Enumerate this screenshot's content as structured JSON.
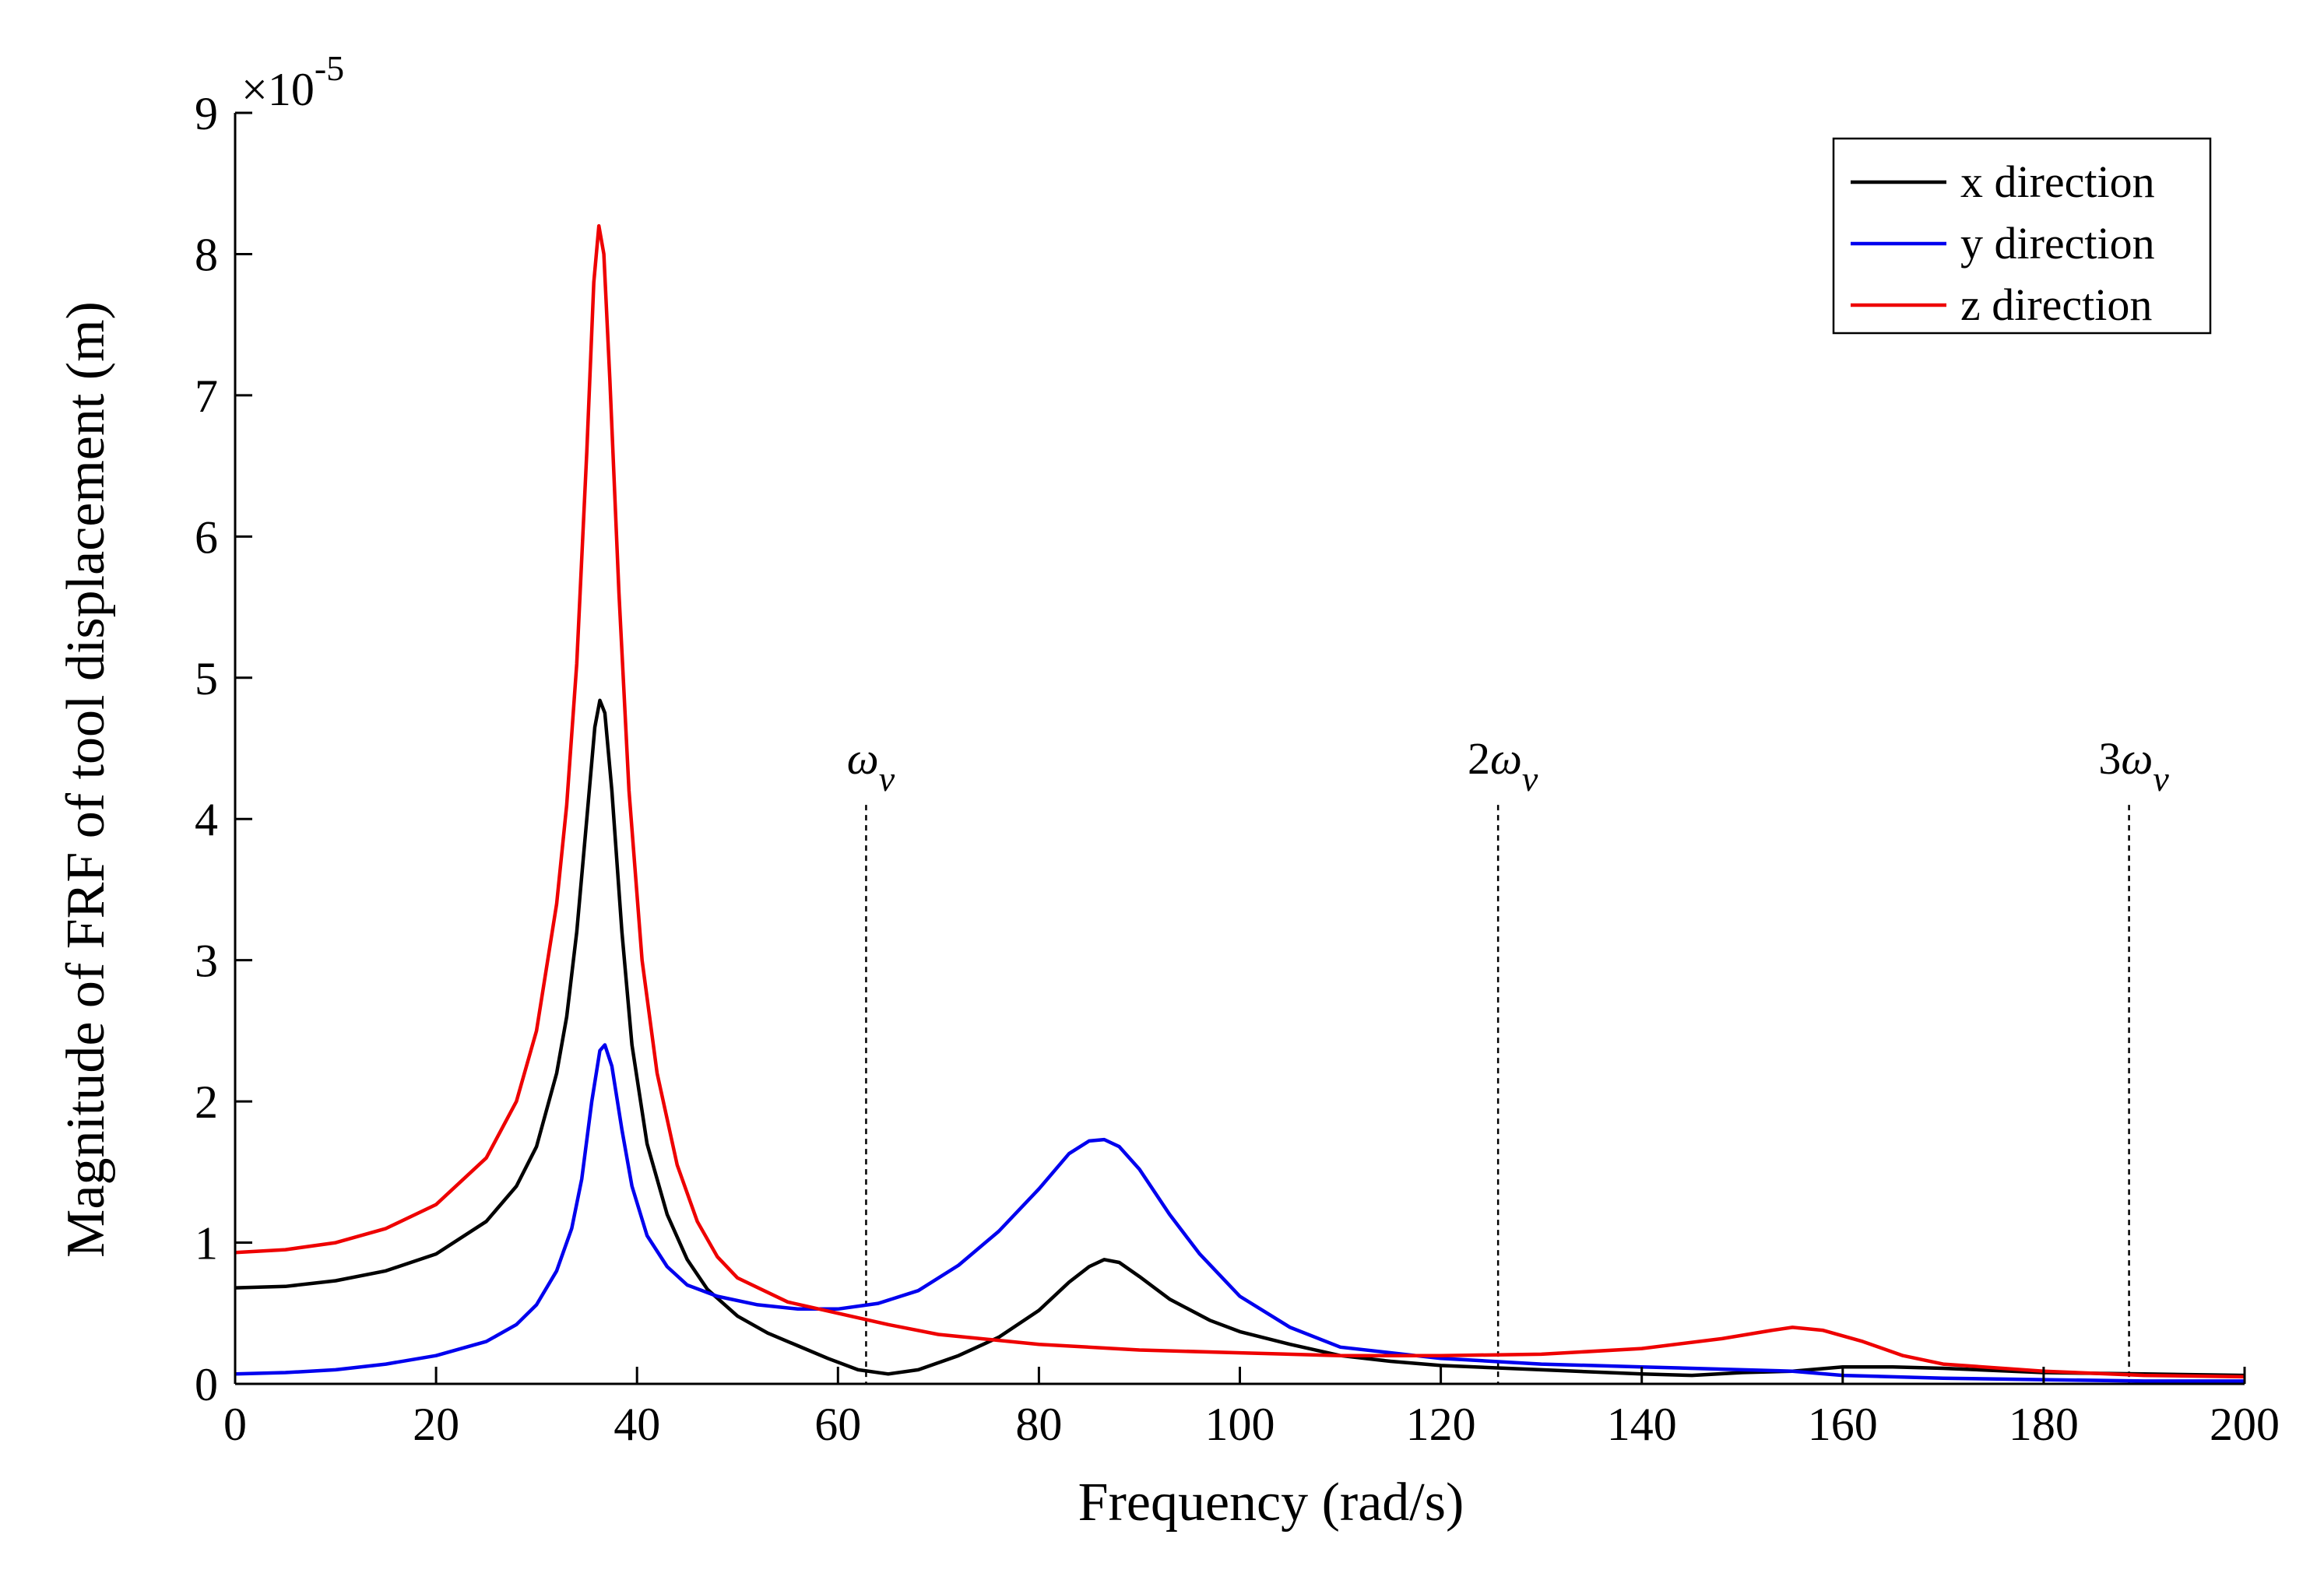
{
  "chart_data": {
    "type": "line",
    "title": "",
    "xlabel": "Frequency (rad/s)",
    "ylabel": "Magnitude of FRF of tool displacement  (m)",
    "xlim": [
      0,
      200
    ],
    "ylim": [
      0,
      9
    ],
    "y_multiplier_text": "×10",
    "y_multiplier_exponent": "-5",
    "x_ticks": [
      0,
      20,
      40,
      60,
      80,
      100,
      120,
      140,
      160,
      180,
      200
    ],
    "y_ticks": [
      0,
      1,
      2,
      3,
      4,
      5,
      6,
      7,
      8,
      9
    ],
    "x_tick_labels": [
      "0",
      "20",
      "40",
      "60",
      "80",
      "100",
      "120",
      "140",
      "160",
      "180",
      "200"
    ],
    "y_tick_labels": [
      "0",
      "1",
      "2",
      "3",
      "4",
      "5",
      "6",
      "7",
      "8",
      "9"
    ],
    "grid": false,
    "legend_position": "top-right",
    "series": [
      {
        "name": "x direction",
        "color": "#000000",
        "points": [
          [
            0,
            0.68
          ],
          [
            5,
            0.69
          ],
          [
            10,
            0.73
          ],
          [
            15,
            0.8
          ],
          [
            20,
            0.92
          ],
          [
            25,
            1.15
          ],
          [
            28,
            1.4
          ],
          [
            30,
            1.68
          ],
          [
            32,
            2.2
          ],
          [
            33,
            2.6
          ],
          [
            34,
            3.2
          ],
          [
            35,
            4.0
          ],
          [
            35.8,
            4.65
          ],
          [
            36.3,
            4.84
          ],
          [
            36.8,
            4.75
          ],
          [
            37.5,
            4.2
          ],
          [
            38.5,
            3.2
          ],
          [
            39.5,
            2.4
          ],
          [
            41,
            1.7
          ],
          [
            43,
            1.2
          ],
          [
            45,
            0.88
          ],
          [
            47,
            0.67
          ],
          [
            50,
            0.48
          ],
          [
            53,
            0.36
          ],
          [
            56,
            0.27
          ],
          [
            59,
            0.18
          ],
          [
            62,
            0.1
          ],
          [
            65,
            0.07
          ],
          [
            68,
            0.1
          ],
          [
            72,
            0.2
          ],
          [
            76,
            0.33
          ],
          [
            80,
            0.52
          ],
          [
            83,
            0.72
          ],
          [
            85,
            0.83
          ],
          [
            86.5,
            0.88
          ],
          [
            88,
            0.86
          ],
          [
            90,
            0.76
          ],
          [
            93,
            0.6
          ],
          [
            97,
            0.45
          ],
          [
            100,
            0.37
          ],
          [
            105,
            0.28
          ],
          [
            110,
            0.2
          ],
          [
            115,
            0.16
          ],
          [
            120,
            0.13
          ],
          [
            130,
            0.1
          ],
          [
            140,
            0.07
          ],
          [
            145,
            0.06
          ],
          [
            150,
            0.08
          ],
          [
            155,
            0.09
          ],
          [
            160,
            0.12
          ],
          [
            165,
            0.12
          ],
          [
            170,
            0.11
          ],
          [
            180,
            0.08
          ],
          [
            190,
            0.07
          ],
          [
            200,
            0.06
          ]
        ]
      },
      {
        "name": "y direction",
        "color": "#0000ee",
        "points": [
          [
            0,
            0.07
          ],
          [
            5,
            0.08
          ],
          [
            10,
            0.1
          ],
          [
            15,
            0.14
          ],
          [
            20,
            0.2
          ],
          [
            25,
            0.3
          ],
          [
            28,
            0.42
          ],
          [
            30,
            0.56
          ],
          [
            32,
            0.8
          ],
          [
            33.5,
            1.1
          ],
          [
            34.5,
            1.45
          ],
          [
            35.5,
            2.0
          ],
          [
            36.3,
            2.36
          ],
          [
            36.8,
            2.4
          ],
          [
            37.5,
            2.25
          ],
          [
            38.5,
            1.8
          ],
          [
            39.5,
            1.4
          ],
          [
            41,
            1.05
          ],
          [
            43,
            0.83
          ],
          [
            45,
            0.7
          ],
          [
            48,
            0.62
          ],
          [
            52,
            0.56
          ],
          [
            56,
            0.53
          ],
          [
            60,
            0.53
          ],
          [
            64,
            0.57
          ],
          [
            68,
            0.66
          ],
          [
            72,
            0.84
          ],
          [
            76,
            1.08
          ],
          [
            80,
            1.38
          ],
          [
            83,
            1.63
          ],
          [
            85,
            1.72
          ],
          [
            86.5,
            1.73
          ],
          [
            88,
            1.68
          ],
          [
            90,
            1.52
          ],
          [
            93,
            1.2
          ],
          [
            96,
            0.92
          ],
          [
            100,
            0.62
          ],
          [
            105,
            0.4
          ],
          [
            110,
            0.26
          ],
          [
            120,
            0.18
          ],
          [
            130,
            0.14
          ],
          [
            140,
            0.12
          ],
          [
            150,
            0.1
          ],
          [
            155,
            0.09
          ],
          [
            160,
            0.06
          ],
          [
            170,
            0.04
          ],
          [
            180,
            0.03
          ],
          [
            190,
            0.02
          ],
          [
            200,
            0.02
          ]
        ]
      },
      {
        "name": "z direction",
        "color": "#ee0000",
        "points": [
          [
            0,
            0.93
          ],
          [
            5,
            0.95
          ],
          [
            10,
            1.0
          ],
          [
            15,
            1.1
          ],
          [
            20,
            1.27
          ],
          [
            25,
            1.6
          ],
          [
            28,
            2.0
          ],
          [
            30,
            2.5
          ],
          [
            32,
            3.4
          ],
          [
            33,
            4.1
          ],
          [
            34,
            5.1
          ],
          [
            35,
            6.6
          ],
          [
            35.7,
            7.8
          ],
          [
            36.2,
            8.2
          ],
          [
            36.7,
            8.0
          ],
          [
            37.3,
            7.1
          ],
          [
            38.2,
            5.6
          ],
          [
            39.2,
            4.2
          ],
          [
            40.5,
            3.0
          ],
          [
            42,
            2.2
          ],
          [
            44,
            1.55
          ],
          [
            46,
            1.15
          ],
          [
            48,
            0.9
          ],
          [
            50,
            0.75
          ],
          [
            55,
            0.58
          ],
          [
            60,
            0.5
          ],
          [
            65,
            0.42
          ],
          [
            70,
            0.35
          ],
          [
            80,
            0.28
          ],
          [
            90,
            0.24
          ],
          [
            100,
            0.22
          ],
          [
            110,
            0.2
          ],
          [
            120,
            0.2
          ],
          [
            130,
            0.21
          ],
          [
            140,
            0.25
          ],
          [
            148,
            0.32
          ],
          [
            153,
            0.38
          ],
          [
            155,
            0.4
          ],
          [
            158,
            0.38
          ],
          [
            162,
            0.3
          ],
          [
            166,
            0.2
          ],
          [
            170,
            0.14
          ],
          [
            180,
            0.09
          ],
          [
            190,
            0.06
          ],
          [
            200,
            0.05
          ]
        ]
      }
    ],
    "vlines": [
      {
        "x": 62.8,
        "y_top": 4.1,
        "label_main": "ω",
        "label_prefix": "",
        "label_sub": "v"
      },
      {
        "x": 125.7,
        "y_top": 4.1,
        "label_main": "ω",
        "label_prefix": "2",
        "label_sub": "v"
      },
      {
        "x": 188.5,
        "y_top": 4.1,
        "label_main": "ω",
        "label_prefix": "3",
        "label_sub": "v"
      }
    ]
  }
}
